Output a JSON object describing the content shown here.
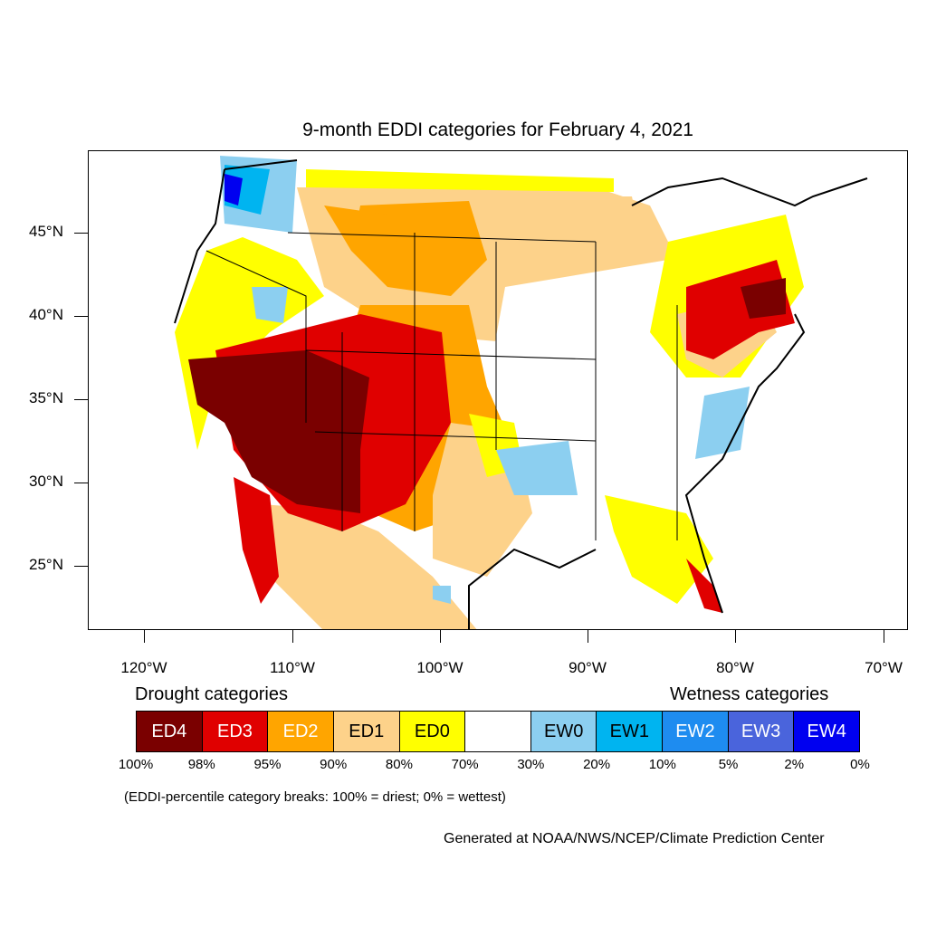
{
  "map": {
    "title": "9-month EDDI categories for February 4, 2021",
    "lat_labels": [
      "45°N",
      "40°N",
      "35°N",
      "30°N",
      "25°N"
    ],
    "lon_labels": [
      "120°W",
      "110°W",
      "100°W",
      "90°W",
      "80°W",
      "70°W"
    ]
  },
  "legend": {
    "drought_heading": "Drought categories",
    "wetness_heading": "Wetness categories",
    "categories": [
      {
        "label": "ED4",
        "color": "#7a0000",
        "text_color": "#ffffff"
      },
      {
        "label": "ED3",
        "color": "#e00000",
        "text_color": "#ffffff"
      },
      {
        "label": "ED2",
        "color": "#ffa500",
        "text_color": "#ffffff"
      },
      {
        "label": "ED1",
        "color": "#fdd28a",
        "text_color": "#000000"
      },
      {
        "label": "ED0",
        "color": "#ffff00",
        "text_color": "#000000"
      },
      {
        "label": "",
        "color": "#ffffff",
        "text_color": "#000000"
      },
      {
        "label": "EW0",
        "color": "#8ccff0",
        "text_color": "#000000"
      },
      {
        "label": "EW1",
        "color": "#00b4f0",
        "text_color": "#000000"
      },
      {
        "label": "EW2",
        "color": "#1e8cf0",
        "text_color": "#ffffff"
      },
      {
        "label": "EW3",
        "color": "#4a64dc",
        "text_color": "#ffffff"
      },
      {
        "label": "EW4",
        "color": "#0000f0",
        "text_color": "#ffffff"
      }
    ],
    "percent_breaks": [
      "100%",
      "98%",
      "95%",
      "90%",
      "80%",
      "70%",
      "30%",
      "20%",
      "10%",
      "5%",
      "2%",
      "0%"
    ],
    "note": "(EDDI-percentile category breaks: 100% = driest; 0% = wettest)"
  },
  "credit": "Generated at NOAA/NWS/NCEP/Climate Prediction Center"
}
